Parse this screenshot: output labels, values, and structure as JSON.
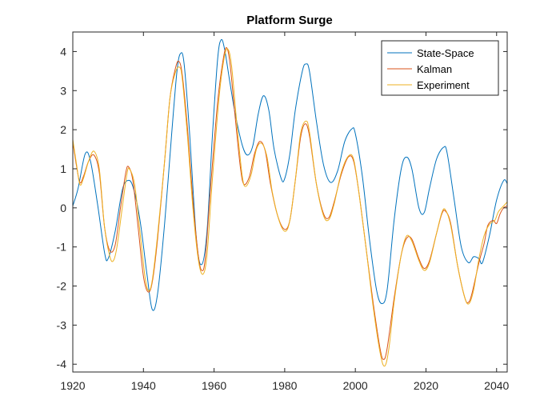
{
  "chart_data": {
    "type": "line",
    "title": "Platform Surge",
    "xlabel": "",
    "ylabel": "",
    "xlim": [
      1920,
      2043
    ],
    "ylim": [
      -4.2,
      4.5
    ],
    "xticks": [
      1920,
      1940,
      1960,
      1980,
      2000,
      2020,
      2040
    ],
    "yticks": [
      -4,
      -3,
      -2,
      -1,
      0,
      1,
      2,
      3,
      4
    ],
    "x_tick_labels": [
      "1920",
      "1940",
      "1960",
      "1980",
      "2000",
      "2020",
      "2040"
    ],
    "y_tick_labels": [
      "-4",
      "-3",
      "-2",
      "-1",
      "0",
      "1",
      "2",
      "3",
      "4"
    ],
    "grid": false,
    "legend_position": "top-right",
    "series": [
      {
        "name": "State-Space",
        "color": "#0072BD",
        "points": [
          [
            1920,
            0.05
          ],
          [
            1921.5,
            0.5
          ],
          [
            1923.5,
            1.38
          ],
          [
            1925,
            1.2
          ],
          [
            1927,
            0.1
          ],
          [
            1929,
            -1.15
          ],
          [
            1930,
            -1.3
          ],
          [
            1932,
            -0.6
          ],
          [
            1934,
            0.45
          ],
          [
            1935.5,
            0.7
          ],
          [
            1937,
            0.55
          ],
          [
            1939,
            -0.3
          ],
          [
            1941,
            -1.7
          ],
          [
            1942.5,
            -2.6
          ],
          [
            1944,
            -2.2
          ],
          [
            1946,
            -0.4
          ],
          [
            1948,
            1.9
          ],
          [
            1949.5,
            3.5
          ],
          [
            1950.5,
            3.95
          ],
          [
            1951.5,
            3.7
          ],
          [
            1953,
            2.0
          ],
          [
            1955,
            -0.8
          ],
          [
            1956.5,
            -1.45
          ],
          [
            1958,
            -0.6
          ],
          [
            1959.5,
            1.8
          ],
          [
            1961,
            3.8
          ],
          [
            1962,
            4.3
          ],
          [
            1963,
            4.05
          ],
          [
            1964.5,
            3.2
          ],
          [
            1966,
            2.4
          ],
          [
            1968,
            1.6
          ],
          [
            1969.5,
            1.35
          ],
          [
            1971,
            1.6
          ],
          [
            1972.5,
            2.4
          ],
          [
            1974,
            2.87
          ],
          [
            1975.5,
            2.5
          ],
          [
            1977,
            1.5
          ],
          [
            1979,
            0.75
          ],
          [
            1980,
            0.75
          ],
          [
            1981.5,
            1.4
          ],
          [
            1983,
            2.5
          ],
          [
            1985,
            3.5
          ],
          [
            1986,
            3.68
          ],
          [
            1987,
            3.5
          ],
          [
            1989,
            2.2
          ],
          [
            1991,
            1.1
          ],
          [
            1993,
            0.65
          ],
          [
            1995,
            0.95
          ],
          [
            1997,
            1.7
          ],
          [
            1999,
            2.02
          ],
          [
            2000,
            1.9
          ],
          [
            2002,
            0.8
          ],
          [
            2004,
            -0.8
          ],
          [
            2006,
            -2.1
          ],
          [
            2007.5,
            -2.45
          ],
          [
            2009,
            -2.1
          ],
          [
            2011,
            -0.3
          ],
          [
            2013,
            1.0
          ],
          [
            2014.5,
            1.3
          ],
          [
            2016,
            1.0
          ],
          [
            2018,
            0.0
          ],
          [
            2019.5,
            -0.12
          ],
          [
            2021,
            0.5
          ],
          [
            2023,
            1.25
          ],
          [
            2025,
            1.55
          ],
          [
            2026,
            1.4
          ],
          [
            2028,
            0.2
          ],
          [
            2030,
            -1.0
          ],
          [
            2032,
            -1.4
          ],
          [
            2033.5,
            -1.25
          ],
          [
            2035,
            -1.3
          ],
          [
            2036,
            -1.4
          ],
          [
            2038,
            -0.7
          ],
          [
            2040,
            0.2
          ],
          [
            2042,
            0.7
          ],
          [
            2043,
            0.62
          ]
        ]
      },
      {
        "name": "Kalman",
        "color": "#D95319",
        "points": [
          [
            1920,
            1.7
          ],
          [
            1921,
            1.1
          ],
          [
            1922,
            0.65
          ],
          [
            1923,
            0.8
          ],
          [
            1924.5,
            1.2
          ],
          [
            1926,
            1.35
          ],
          [
            1927.5,
            0.9
          ],
          [
            1929,
            -0.5
          ],
          [
            1930.5,
            -1.1
          ],
          [
            1932,
            -0.95
          ],
          [
            1933.5,
            0.0
          ],
          [
            1935,
            0.9
          ],
          [
            1935.8,
            1.05
          ],
          [
            1937,
            0.7
          ],
          [
            1938.5,
            -0.5
          ],
          [
            1940,
            -1.75
          ],
          [
            1941.3,
            -2.15
          ],
          [
            1942.5,
            -1.9
          ],
          [
            1944,
            -0.8
          ],
          [
            1946,
            1.2
          ],
          [
            1947.5,
            2.8
          ],
          [
            1949,
            3.55
          ],
          [
            1950,
            3.75
          ],
          [
            1951,
            3.4
          ],
          [
            1952.5,
            2.0
          ],
          [
            1954,
            0.2
          ],
          [
            1955.5,
            -1.2
          ],
          [
            1956.5,
            -1.6
          ],
          [
            1957.5,
            -1.3
          ],
          [
            1959,
            0.5
          ],
          [
            1961,
            2.7
          ],
          [
            1962.5,
            3.75
          ],
          [
            1963.5,
            4.1
          ],
          [
            1964.5,
            3.7
          ],
          [
            1966,
            2.3
          ],
          [
            1967.5,
            1.0
          ],
          [
            1968.5,
            0.6
          ],
          [
            1970,
            0.8
          ],
          [
            1971.5,
            1.4
          ],
          [
            1973,
            1.7
          ],
          [
            1974.5,
            1.45
          ],
          [
            1976,
            0.6
          ],
          [
            1978,
            -0.2
          ],
          [
            1980,
            -0.55
          ],
          [
            1981.5,
            -0.3
          ],
          [
            1983,
            0.7
          ],
          [
            1984.5,
            1.8
          ],
          [
            1985.8,
            2.15
          ],
          [
            1987,
            1.85
          ],
          [
            1989,
            0.6
          ],
          [
            1991,
            -0.15
          ],
          [
            1992.5,
            -0.25
          ],
          [
            1994,
            0.15
          ],
          [
            1996,
            0.85
          ],
          [
            1998,
            1.3
          ],
          [
            1999.5,
            1.2
          ],
          [
            2001,
            0.4
          ],
          [
            2003,
            -1.0
          ],
          [
            2005,
            -2.4
          ],
          [
            2007,
            -3.6
          ],
          [
            2008,
            -3.88
          ],
          [
            2009,
            -3.6
          ],
          [
            2011,
            -2.3
          ],
          [
            2013,
            -1.2
          ],
          [
            2014.5,
            -0.78
          ],
          [
            2016,
            -0.8
          ],
          [
            2018,
            -1.3
          ],
          [
            2019.5,
            -1.55
          ],
          [
            2021,
            -1.35
          ],
          [
            2023,
            -0.65
          ],
          [
            2024.5,
            -0.15
          ],
          [
            2025.5,
            -0.08
          ],
          [
            2027,
            -0.4
          ],
          [
            2029,
            -1.5
          ],
          [
            2031,
            -2.3
          ],
          [
            2032,
            -2.42
          ],
          [
            2033,
            -2.2
          ],
          [
            2035,
            -1.4
          ],
          [
            2036.5,
            -0.9
          ],
          [
            2037.5,
            -0.45
          ],
          [
            2039,
            -0.32
          ],
          [
            2040,
            -0.4
          ],
          [
            2041,
            -0.15
          ],
          [
            2042,
            0.0
          ],
          [
            2043,
            0.05
          ]
        ]
      },
      {
        "name": "Experiment",
        "color": "#EDB120",
        "points": [
          [
            1920,
            1.75
          ],
          [
            1921,
            1.15
          ],
          [
            1922,
            0.6
          ],
          [
            1923,
            0.75
          ],
          [
            1924.5,
            1.2
          ],
          [
            1926,
            1.45
          ],
          [
            1927.5,
            1.0
          ],
          [
            1929,
            -0.5
          ],
          [
            1930.5,
            -1.25
          ],
          [
            1931.5,
            -1.35
          ],
          [
            1932.5,
            -1.0
          ],
          [
            1934,
            0.0
          ],
          [
            1935.3,
            0.85
          ],
          [
            1936,
            1.0
          ],
          [
            1937.5,
            0.6
          ],
          [
            1939,
            -0.6
          ],
          [
            1940.5,
            -1.8
          ],
          [
            1941.5,
            -2.12
          ],
          [
            1942.5,
            -1.85
          ],
          [
            1944,
            -0.7
          ],
          [
            1946,
            1.2
          ],
          [
            1947.5,
            2.8
          ],
          [
            1949,
            3.45
          ],
          [
            1950.2,
            3.6
          ],
          [
            1951,
            3.3
          ],
          [
            1952.5,
            1.8
          ],
          [
            1954,
            0.0
          ],
          [
            1955.5,
            -1.3
          ],
          [
            1956.8,
            -1.7
          ],
          [
            1958,
            -1.2
          ],
          [
            1959.5,
            0.7
          ],
          [
            1961.5,
            2.9
          ],
          [
            1963,
            3.9
          ],
          [
            1964,
            4.05
          ],
          [
            1965,
            3.6
          ],
          [
            1966.5,
            2.1
          ],
          [
            1968,
            0.8
          ],
          [
            1969,
            0.55
          ],
          [
            1970.5,
            0.85
          ],
          [
            1972,
            1.5
          ],
          [
            1973.5,
            1.65
          ],
          [
            1975,
            1.3
          ],
          [
            1976.5,
            0.4
          ],
          [
            1978.5,
            -0.35
          ],
          [
            1980.2,
            -0.6
          ],
          [
            1981.5,
            -0.3
          ],
          [
            1983,
            0.7
          ],
          [
            1984.5,
            1.9
          ],
          [
            1986,
            2.22
          ],
          [
            1987,
            1.95
          ],
          [
            1989,
            0.6
          ],
          [
            1991,
            -0.2
          ],
          [
            1992.5,
            -0.3
          ],
          [
            1994,
            0.1
          ],
          [
            1996,
            0.9
          ],
          [
            1998,
            1.32
          ],
          [
            1999.5,
            1.25
          ],
          [
            2001,
            0.4
          ],
          [
            2003,
            -1.0
          ],
          [
            2005,
            -2.5
          ],
          [
            2007,
            -3.7
          ],
          [
            2008.3,
            -4.05
          ],
          [
            2009.5,
            -3.6
          ],
          [
            2011,
            -2.4
          ],
          [
            2013,
            -1.2
          ],
          [
            2014.5,
            -0.72
          ],
          [
            2016,
            -0.85
          ],
          [
            2018,
            -1.35
          ],
          [
            2019.5,
            -1.6
          ],
          [
            2021,
            -1.4
          ],
          [
            2023,
            -0.65
          ],
          [
            2024.5,
            -0.12
          ],
          [
            2025.5,
            -0.05
          ],
          [
            2027,
            -0.45
          ],
          [
            2029,
            -1.5
          ],
          [
            2031,
            -2.3
          ],
          [
            2032.2,
            -2.45
          ],
          [
            2033.5,
            -2.1
          ],
          [
            2035,
            -1.3
          ],
          [
            2036.5,
            -0.7
          ],
          [
            2038,
            -0.42
          ],
          [
            2039.5,
            -0.32
          ],
          [
            2040.5,
            -0.1
          ],
          [
            2042,
            0.05
          ],
          [
            2043,
            0.15
          ]
        ]
      }
    ]
  }
}
